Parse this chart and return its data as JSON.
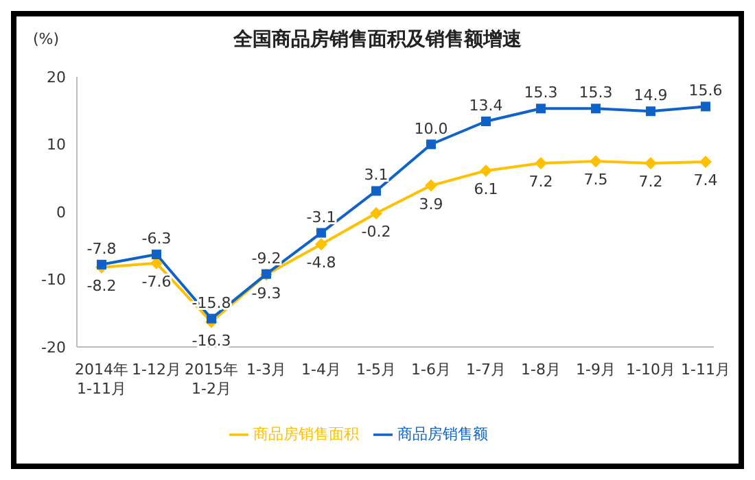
{
  "chart_data": {
    "type": "line",
    "title": "全国商品房销售面积及销售额增速",
    "ylabel": "(%)",
    "categories": [
      "2014年\n1-11月",
      "1-12月",
      "2015年\n1-2月",
      "1-3月",
      "1-4月",
      "1-5月",
      "1-6月",
      "1-7月",
      "1-8月",
      "1-9月",
      "1-10月",
      "1-11月"
    ],
    "series": [
      {
        "name": "商品房销售面积",
        "color": "#ffc000",
        "marker": "diamond",
        "values": [
          -8.2,
          -7.6,
          -16.3,
          -9.3,
          -4.8,
          -0.2,
          3.9,
          6.1,
          7.2,
          7.5,
          7.2,
          7.4
        ],
        "value_labels": [
          "-8.2",
          "-7.6",
          "-16.3",
          "-9.3",
          "-4.8",
          "-0.2",
          "3.9",
          "6.1",
          "7.2",
          "7.5",
          "7.2",
          "7.4"
        ]
      },
      {
        "name": "商品房销售额",
        "color": "#0f62c8",
        "marker": "square",
        "values": [
          -7.8,
          -6.3,
          -15.8,
          -9.2,
          -3.1,
          3.1,
          10.0,
          13.4,
          15.3,
          15.3,
          14.9,
          15.6
        ],
        "value_labels": [
          "-7.8",
          "-6.3",
          "-15.8",
          "-9.2",
          "-3.1",
          "3.1",
          "10.0",
          "13.4",
          "15.3",
          "15.3",
          "14.9",
          "15.6"
        ]
      }
    ],
    "ylim": [
      -20,
      20
    ],
    "yticks": [
      -20,
      -10,
      0,
      10,
      20
    ],
    "grid": false,
    "legend": "bottom"
  }
}
